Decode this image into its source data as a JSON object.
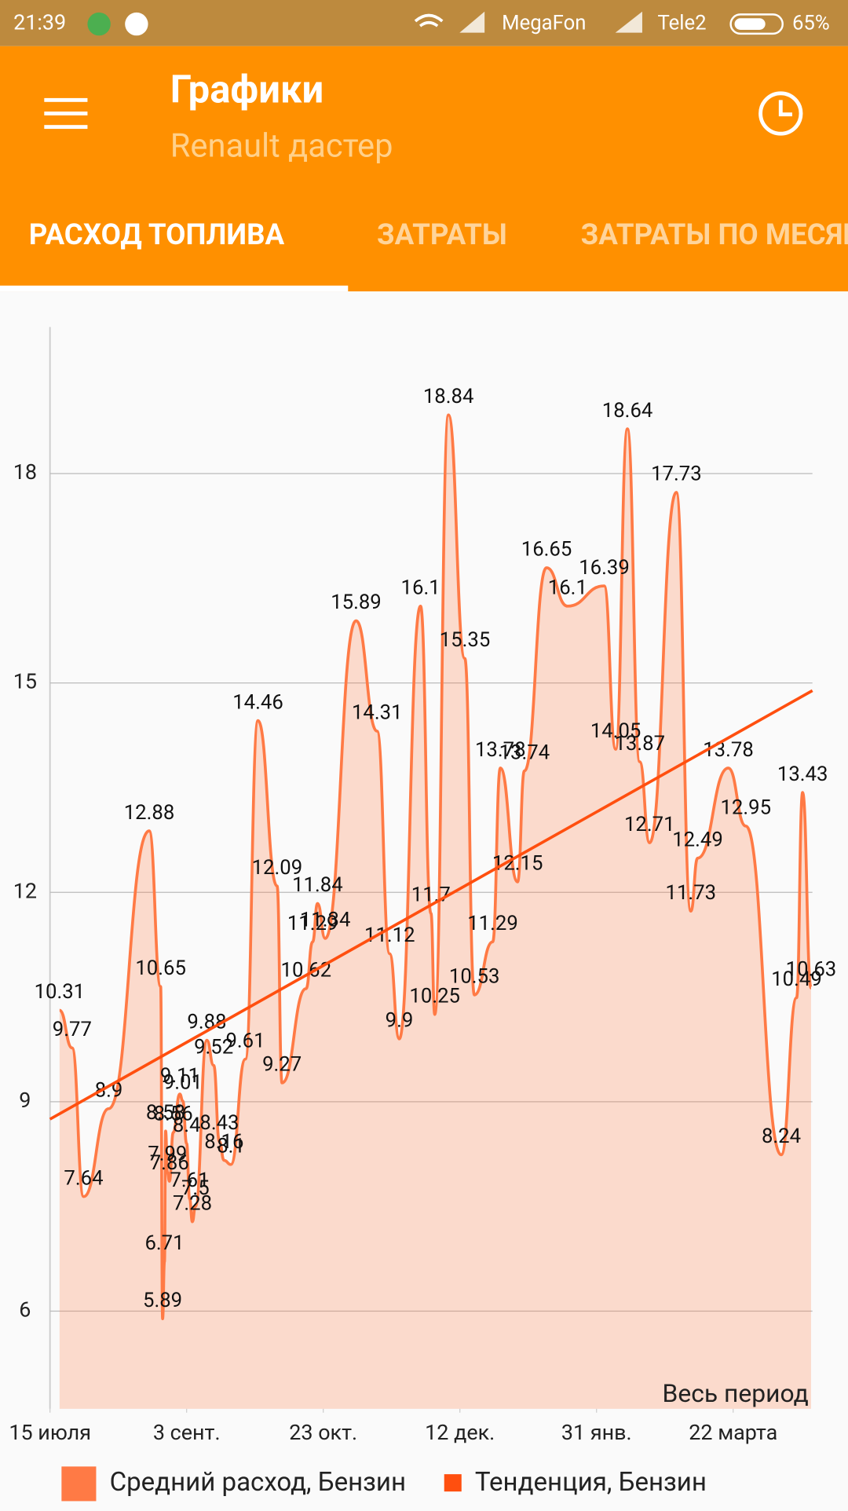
{
  "status_bar": {
    "time": "21:39",
    "carrier1": "MegaFon",
    "carrier2": "Tele2",
    "battery": "65%"
  },
  "toolbar": {
    "title": "Графики",
    "subtitle": "Renault дастер"
  },
  "tabs": [
    "РАСХОД ТОПЛИВА",
    "ЗАТРАТЫ",
    "ЗАТРАТЫ ПО МЕСЯЦАМ"
  ],
  "chart_data": {
    "type": "line",
    "annotation": "Весь период",
    "xlim": [
      0,
      279
    ],
    "xticks": [
      {
        "value": 0,
        "label": "15 июля"
      },
      {
        "value": 50,
        "label": "3 сент."
      },
      {
        "value": 100,
        "label": "23 окт."
      },
      {
        "value": 150,
        "label": "12 дек."
      },
      {
        "value": 200,
        "label": "31 янв."
      },
      {
        "value": 250,
        "label": "22 марта"
      }
    ],
    "ylim": [
      4.6,
      20.1
    ],
    "yticks": [
      6,
      9,
      12,
      15,
      18
    ],
    "grid": true,
    "legend": "bottom",
    "series": [
      {
        "name": "Средний расход, Бензин",
        "color": "#ff7a45",
        "x": [
          3.5,
          8.1,
          12.3,
          21.5,
          36.3,
          40.5,
          41.2,
          41.9,
          42.3,
          43,
          43.7,
          45.1,
          47.5,
          48.6,
          50,
          51.1,
          52.1,
          53.2,
          57.4,
          59.9,
          62,
          63.7,
          66.2,
          71.5,
          76.1,
          83.1,
          84.9,
          93.7,
          96.1,
          97.9,
          100.7,
          112,
          119.7,
          124.3,
          127.8,
          135.6,
          139.4,
          140.8,
          145.8,
          151.8,
          155.3,
          162,
          164.8,
          171.1,
          173.6,
          181.7,
          189.4,
          202.8,
          207,
          211.3,
          215.8,
          219.4,
          229.2,
          234.5,
          237,
          248.2,
          254.6,
          267.6,
          273.2,
          275.4,
          278.5
        ],
        "values": [
          10.31,
          9.77,
          7.64,
          8.9,
          12.88,
          10.65,
          5.89,
          6.71,
          8.58,
          7.99,
          7.86,
          8.56,
          9.11,
          9.01,
          8.4,
          7.61,
          7.28,
          7.5,
          9.88,
          9.52,
          8.43,
          8.16,
          8.1,
          9.61,
          14.46,
          12.09,
          9.27,
          10.62,
          11.29,
          11.84,
          11.34,
          15.89,
          14.31,
          11.12,
          9.9,
          16.1,
          11.7,
          10.25,
          18.84,
          15.35,
          10.53,
          11.29,
          13.78,
          12.15,
          13.74,
          16.65,
          16.1,
          16.39,
          14.05,
          18.64,
          13.87,
          12.71,
          17.73,
          11.73,
          12.49,
          13.78,
          12.95,
          8.24,
          10.49,
          13.43,
          10.63
        ]
      },
      {
        "name": "Тенденция, Бензин",
        "color": "#ff4f0f",
        "x": [
          0,
          279
        ],
        "values": [
          8.75,
          14.89
        ]
      }
    ]
  }
}
